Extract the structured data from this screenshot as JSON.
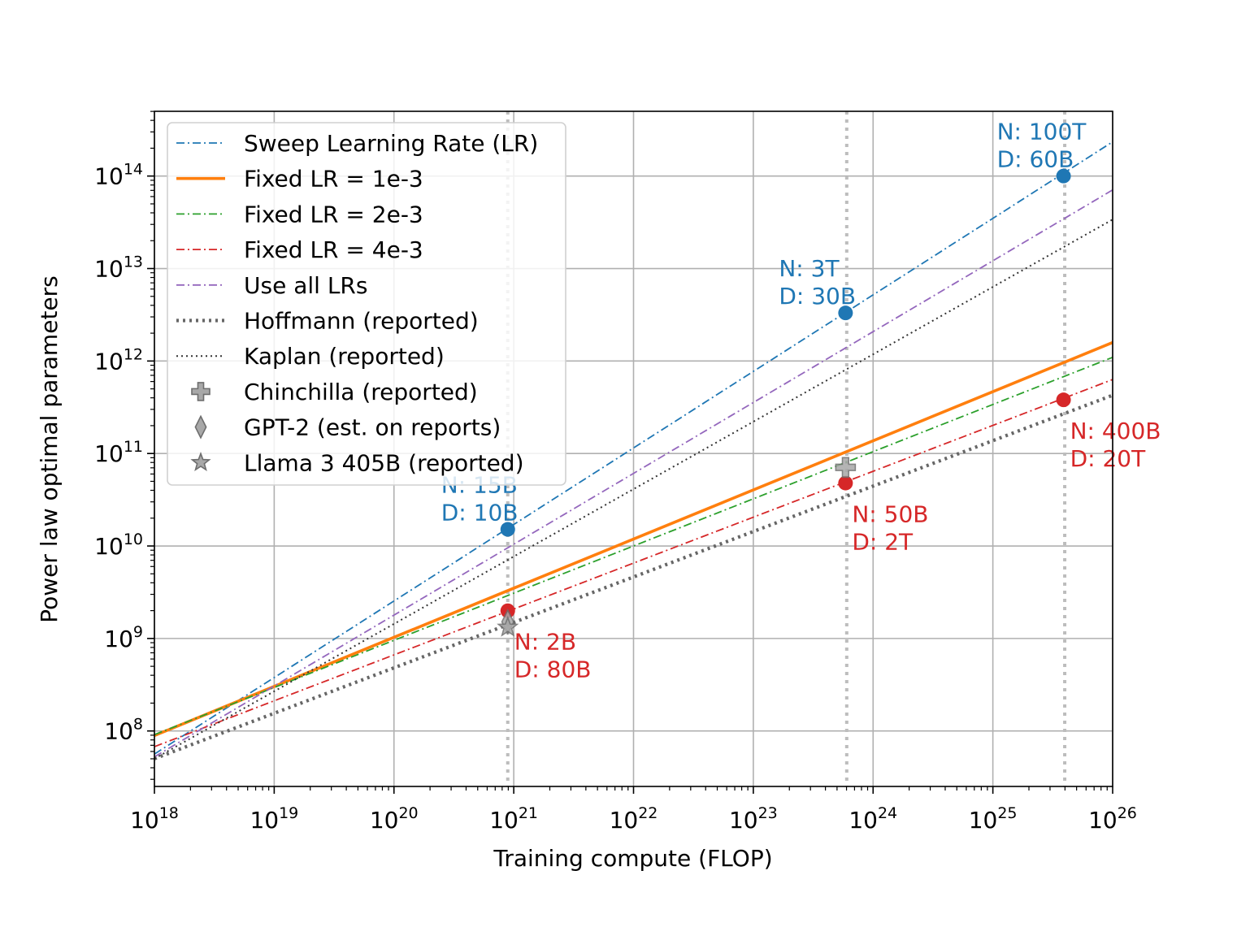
{
  "chart_data": {
    "type": "line",
    "title": "",
    "xlabel": "Training compute (FLOP)",
    "ylabel": "Power law optimal parameters",
    "x_scale": "log",
    "y_scale": "log",
    "xlim_log10": [
      18,
      26
    ],
    "ylim_log10": [
      7.4,
      14.7
    ],
    "x_ticks": [
      {
        "base": "10",
        "exp": "18",
        "value": 18
      },
      {
        "base": "10",
        "exp": "19",
        "value": 19
      },
      {
        "base": "10",
        "exp": "20",
        "value": 20
      },
      {
        "base": "10",
        "exp": "21",
        "value": 21
      },
      {
        "base": "10",
        "exp": "22",
        "value": 22
      },
      {
        "base": "10",
        "exp": "23",
        "value": 23
      },
      {
        "base": "10",
        "exp": "24",
        "value": 24
      },
      {
        "base": "10",
        "exp": "25",
        "value": 25
      },
      {
        "base": "10",
        "exp": "26",
        "value": 26
      }
    ],
    "y_ticks": [
      {
        "base": "10",
        "exp": "8",
        "value": 8
      },
      {
        "base": "10",
        "exp": "9",
        "value": 9
      },
      {
        "base": "10",
        "exp": "10",
        "value": 10
      },
      {
        "base": "10",
        "exp": "11",
        "value": 11
      },
      {
        "base": "10",
        "exp": "12",
        "value": 12
      },
      {
        "base": "10",
        "exp": "13",
        "value": 13
      },
      {
        "base": "10",
        "exp": "14",
        "value": 14
      }
    ],
    "grid": true,
    "legend_position": "upper-left",
    "vertical_markers_log10": [
      20.95,
      23.78,
      25.6
    ],
    "series": [
      {
        "name": "Sweep Learning Rate (LR)",
        "color": "#1f77b4",
        "style": "dashdot-fine",
        "x_log10": [
          18,
          26
        ],
        "y_log10": [
          7.75,
          14.37
        ]
      },
      {
        "name": "Fixed LR = 1e-3",
        "color": "#ff7f0e",
        "style": "solid-thick",
        "x_log10": [
          18,
          26
        ],
        "y_log10": [
          7.95,
          12.2
        ]
      },
      {
        "name": "Fixed LR = 2e-3",
        "color": "#2ca02c",
        "style": "dashdot-fine",
        "x_log10": [
          18,
          26
        ],
        "y_log10": [
          7.96,
          12.04
        ]
      },
      {
        "name": "Fixed LR = 4e-3",
        "color": "#d62728",
        "style": "dashdot-fine",
        "x_log10": [
          18,
          26
        ],
        "y_log10": [
          7.83,
          11.8
        ]
      },
      {
        "name": "Use all LRs",
        "color": "#9467bd",
        "style": "dashdot-fine",
        "x_log10": [
          18,
          26
        ],
        "y_log10": [
          7.72,
          13.85
        ]
      },
      {
        "name": "Hoffmann (reported)",
        "color": "#666666",
        "style": "dotted-thick",
        "x_log10": [
          18,
          26
        ],
        "y_log10": [
          7.7,
          11.63
        ]
      },
      {
        "name": "Kaplan (reported)",
        "color": "#333333",
        "style": "dotted-thin",
        "x_log10": [
          18,
          26
        ],
        "y_log10": [
          7.7,
          13.53
        ]
      }
    ],
    "reference_points": [
      {
        "name": "Chinchilla (reported)",
        "marker": "plus",
        "x_log10": 23.77,
        "y_log10": 10.85
      },
      {
        "name": "GPT-2 (est. on reports)",
        "marker": "diamond",
        "x_log10": 20.95,
        "y_log10": 9.18
      },
      {
        "name": "Llama 3 405B (reported)",
        "marker": "star",
        "x_log10": 20.95,
        "y_log10": 9.12
      }
    ],
    "annotated_points": [
      {
        "color": "#1f77b4",
        "x_log10": 20.95,
        "y_log10": 10.18,
        "lines": [
          "N: 15B",
          "D: 10B"
        ],
        "label_anchor": "above"
      },
      {
        "color": "#1f77b4",
        "x_log10": 23.77,
        "y_log10": 12.52,
        "lines": [
          "N: 3T",
          "D: 30B"
        ],
        "label_anchor": "above"
      },
      {
        "color": "#1f77b4",
        "x_log10": 25.59,
        "y_log10": 14.0,
        "lines": [
          "N: 100T",
          "D: 60B"
        ],
        "label_anchor": "above"
      },
      {
        "color": "#d62728",
        "x_log10": 20.95,
        "y_log10": 9.3,
        "lines": [
          "N: 2B",
          "D: 80B"
        ],
        "label_anchor": "below-right"
      },
      {
        "color": "#d62728",
        "x_log10": 23.77,
        "y_log10": 10.68,
        "lines": [
          "N: 50B",
          "D: 2T"
        ],
        "label_anchor": "below-right"
      },
      {
        "color": "#d62728",
        "x_log10": 25.59,
        "y_log10": 11.58,
        "lines": [
          "N: 400B",
          "D: 20T"
        ],
        "label_anchor": "below-right"
      }
    ],
    "legend": [
      {
        "label": "Sweep Learning Rate (LR)",
        "kind": "line",
        "color": "#1f77b4",
        "style": "dashdot-fine"
      },
      {
        "label": "Fixed LR = 1e-3",
        "kind": "line",
        "color": "#ff7f0e",
        "style": "solid-thick"
      },
      {
        "label": "Fixed LR = 2e-3",
        "kind": "line",
        "color": "#2ca02c",
        "style": "dashdot-fine"
      },
      {
        "label": "Fixed LR = 4e-3",
        "kind": "line",
        "color": "#d62728",
        "style": "dashdot-fine"
      },
      {
        "label": "Use all LRs",
        "kind": "line",
        "color": "#9467bd",
        "style": "dashdot-fine"
      },
      {
        "label": "Hoffmann (reported)",
        "kind": "line",
        "color": "#666666",
        "style": "dotted-thick"
      },
      {
        "label": "Kaplan (reported)",
        "kind": "line",
        "color": "#333333",
        "style": "dotted-thin"
      },
      {
        "label": "Chinchilla (reported)",
        "kind": "marker",
        "marker": "plus"
      },
      {
        "label": "GPT-2 (est. on reports)",
        "kind": "marker",
        "marker": "diamond"
      },
      {
        "label": "Llama 3 405B (reported)",
        "kind": "marker",
        "marker": "star"
      }
    ]
  }
}
